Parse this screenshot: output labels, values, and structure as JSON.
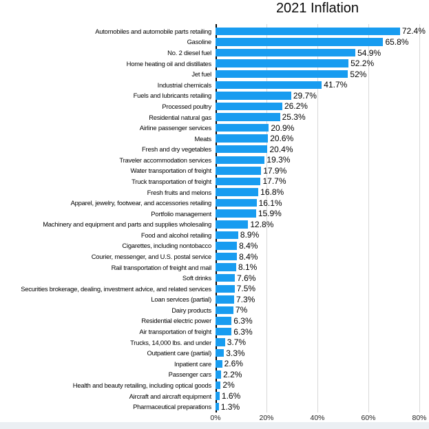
{
  "chart_data": {
    "type": "bar",
    "orientation": "horizontal",
    "title": "2021 Inflation",
    "xlabel": "",
    "ylabel": "",
    "grid": true,
    "xlim": [
      0,
      84
    ],
    "x_ticks": [
      "0%",
      "20%",
      "40%",
      "60%",
      "80%"
    ],
    "x_tick_values": [
      0,
      20,
      40,
      60,
      80
    ],
    "bar_color": "#189cf0",
    "axis_color": "#000000",
    "gridline_color": "#d8d8d8",
    "categories": [
      "Automobiles and automobile parts retailing",
      "Gasoline",
      "No. 2 diesel fuel",
      "Home heating oil and distillates",
      "Jet fuel",
      "Industrial chemicals",
      "Fuels and lubricants retailing",
      "Processed poultry",
      "Residential natural gas",
      "Airline passenger services",
      "Meats",
      "Fresh and dry vegetables",
      "Traveler accommodation services",
      "Water transportation of freight",
      "Truck transportation of freight",
      "Fresh fruits and melons",
      "Apparel, jewelry, footwear, and accessories retailing",
      "Portfolio management",
      "Machinery and equipment and parts and supplies wholesaling",
      "Food and alcohol retailing",
      "Cigarettes, including nontobacco",
      "Courier, messenger, and U.S. postal service",
      "Rail transportation of freight and mail",
      "Soft drinks",
      "Securities brokerage, dealing, investment advice, and related services",
      "Loan services (partial)",
      "Dairy products",
      "Residential electric power",
      "Air transportation of freight",
      "Trucks, 14,000 lbs. and under",
      "Outpatient care (partial)",
      "Inpatient care",
      "Passenger cars",
      "Health and beauty retailing, including optical goods",
      "Aircraft and aircraft equipment",
      "Pharmaceutical preparations"
    ],
    "values": [
      72.4,
      65.8,
      54.9,
      52.2,
      52,
      41.7,
      29.7,
      26.2,
      25.3,
      20.9,
      20.6,
      20.4,
      19.3,
      17.9,
      17.7,
      16.8,
      16.1,
      15.9,
      12.8,
      8.9,
      8.4,
      8.4,
      8.1,
      7.6,
      7.5,
      7.3,
      7,
      6.3,
      6.3,
      3.7,
      3.3,
      2.6,
      2.2,
      2,
      1.6,
      1.3
    ],
    "value_labels": [
      "72.4%",
      "65.8%",
      "54.9%",
      "52.2%",
      "52%",
      "41.7%",
      "29.7%",
      "26.2%",
      "25.3%",
      "20.9%",
      "20.6%",
      "20.4%",
      "19.3%",
      "17.9%",
      "17.7%",
      "16.8%",
      "16.1%",
      "15.9%",
      "12.8%",
      "8.9%",
      "8.4%",
      "8.4%",
      "8.1%",
      "7.6%",
      "7.5%",
      "7.3%",
      "7%",
      "6.3%",
      "6.3%",
      "3.7%",
      "3.3%",
      "2.6%",
      "2.2%",
      "2%",
      "1.6%",
      "1.3%"
    ]
  },
  "layout_hints": {
    "legend": "none",
    "value_labels_position": "right-of-bar"
  }
}
